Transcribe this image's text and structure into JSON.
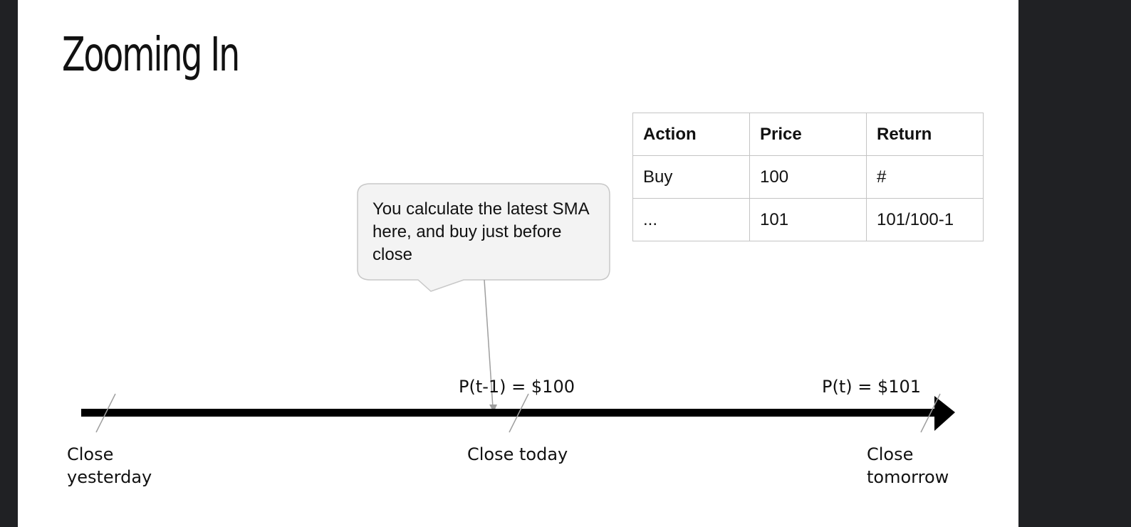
{
  "slide": {
    "title": "Zooming In"
  },
  "table": {
    "headers": [
      "Action",
      "Price",
      "Return"
    ],
    "rows": [
      [
        "Buy",
        "100",
        "#"
      ],
      [
        "...",
        "101",
        "101/100-1"
      ]
    ]
  },
  "callout": {
    "text": "You calculate the latest SMA here, and buy just before close"
  },
  "timeline": {
    "price_today": "P(t-1) = $100",
    "price_tomorrow": "P(t) = $101",
    "close_yesterday_line1": "Close",
    "close_yesterday_line2": "yesterday",
    "close_today": "Close today",
    "close_tomorrow_line1": "Close",
    "close_tomorrow_line2": "tomorrow"
  },
  "colors": {
    "window_background": "#202124",
    "slide_background": "#ffffff",
    "callout_fill": "#f3f3f3",
    "callout_border": "#c8c8c8",
    "table_border": "#c4c4c4",
    "timeline": "#000000"
  }
}
